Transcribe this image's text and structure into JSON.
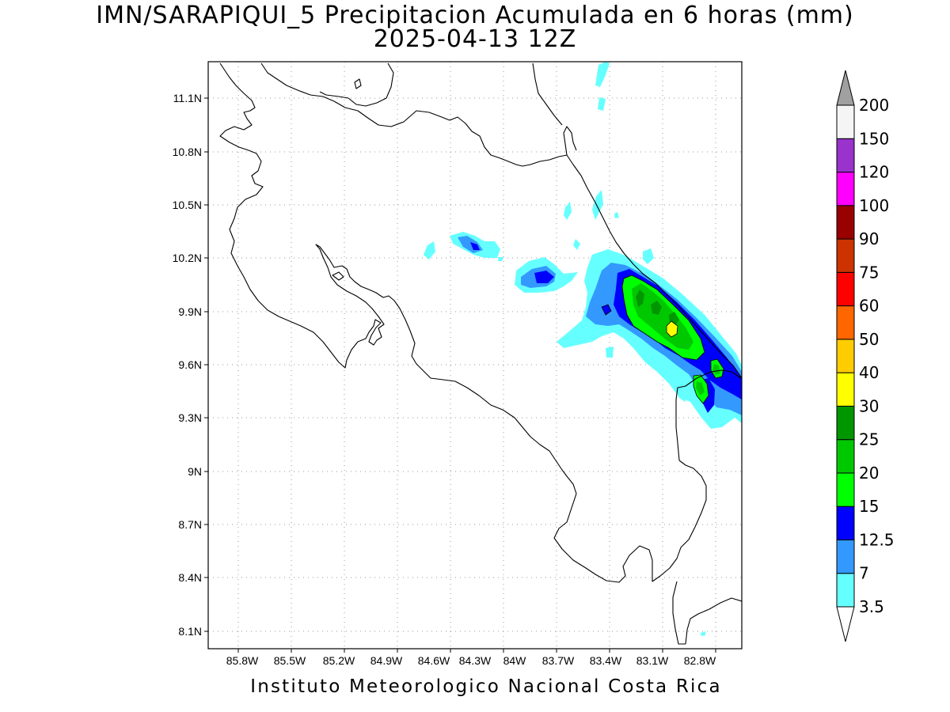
{
  "title_line1": "IMN/SARAPIQUI_5 Precipitacion Acumulada en 6 horas (mm)",
  "title_line2": "2025-04-13 12Z",
  "footer": "Instituto Meteorologico Nacional Costa Rica",
  "map": {
    "lon_range": [
      -86.0,
      -82.6
    ],
    "lat_range": [
      8.0,
      11.3
    ],
    "x_ticks": [
      "85.8W",
      "85.5W",
      "85.2W",
      "84.9W",
      "84.6W",
      "84.3W",
      "84W",
      "83.7W",
      "83.4W",
      "83.1W",
      "82.8W"
    ],
    "y_ticks": [
      "11.1N",
      "10.8N",
      "10.5N",
      "10.2N",
      "9.9N",
      "9.6N",
      "9.3N",
      "9N",
      "8.7N",
      "8.4N",
      "8.1N"
    ],
    "grid": "dotted"
  },
  "colorbar": {
    "labels": [
      "3.5",
      "7",
      "12.5",
      "15",
      "20",
      "25",
      "30",
      "40",
      "50",
      "60",
      "75",
      "90",
      "100",
      "120",
      "150",
      "200"
    ],
    "colors": [
      "#66ffff",
      "#3399ff",
      "#0000ff",
      "#00ff00",
      "#00c800",
      "#009600",
      "#ffff00",
      "#ffcc00",
      "#ff6600",
      "#ff0000",
      "#cc3300",
      "#990000",
      "#ff00ff",
      "#9933cc",
      "#f5f5f5"
    ],
    "top_arrow_color": "#a0a0a0",
    "bottom_arrow_color": "#ffffff"
  }
}
